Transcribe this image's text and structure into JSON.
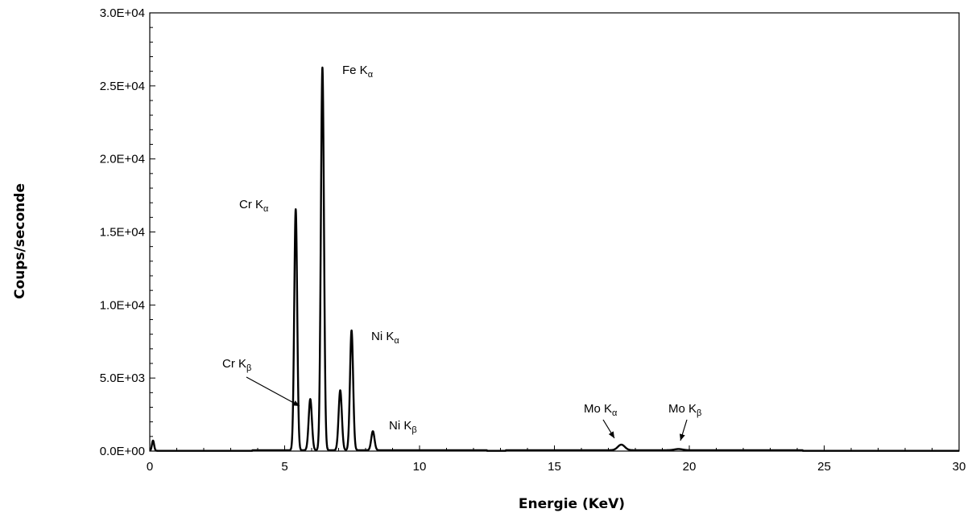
{
  "chart_data": {
    "type": "line",
    "title": "",
    "xlabel": "Energie (KeV)",
    "ylabel": "Coups/seconde",
    "xlim": [
      0,
      30
    ],
    "ylim": [
      0,
      30000
    ],
    "x_ticks": [
      0,
      5,
      10,
      15,
      20,
      25,
      30
    ],
    "x_tick_labels": [
      "0",
      "5",
      "10",
      "15",
      "20",
      "25",
      "30"
    ],
    "y_ticks": [
      0,
      5000,
      10000,
      15000,
      20000,
      25000,
      30000
    ],
    "y_tick_labels": [
      "0.0E+00",
      "5.0E+03",
      "1.0E+04",
      "1.5E+04",
      "2.0E+04",
      "2.5E+04",
      "3.0E+04"
    ],
    "grid": false,
    "line_color": "#000000",
    "series": [
      {
        "peaks": [
          {
            "x": 0.12,
            "y": 700,
            "w": 0.04
          },
          {
            "x": 5.41,
            "y": 16500,
            "w": 0.055
          },
          {
            "x": 5.95,
            "y": 3500,
            "w": 0.06
          },
          {
            "x": 6.4,
            "y": 26200,
            "w": 0.057
          },
          {
            "x": 7.06,
            "y": 4100,
            "w": 0.06
          },
          {
            "x": 7.48,
            "y": 8200,
            "w": 0.058
          },
          {
            "x": 8.27,
            "y": 1300,
            "w": 0.06
          },
          {
            "x": 17.48,
            "y": 380,
            "w": 0.13
          },
          {
            "x": 19.6,
            "y": 80,
            "w": 0.15
          }
        ],
        "baseline": 60
      }
    ],
    "annotations": [
      {
        "label": "Fe K",
        "sub": "α",
        "x": 6.4,
        "y": 26200
      },
      {
        "label": "Cr K",
        "sub": "α",
        "x": 5.41,
        "y": 16500
      },
      {
        "label": "Ni K",
        "sub": "α",
        "x": 7.48,
        "y": 8200
      },
      {
        "label": "Cr K",
        "sub": "β",
        "x": 5.95,
        "y": 3500
      },
      {
        "label": "Ni K",
        "sub": "β",
        "x": 8.27,
        "y": 1300
      },
      {
        "label": "Mo K",
        "sub": "α",
        "x": 17.48,
        "y": 380
      },
      {
        "label": "Mo K",
        "sub": "β",
        "x": 19.6,
        "y": 80
      }
    ]
  }
}
